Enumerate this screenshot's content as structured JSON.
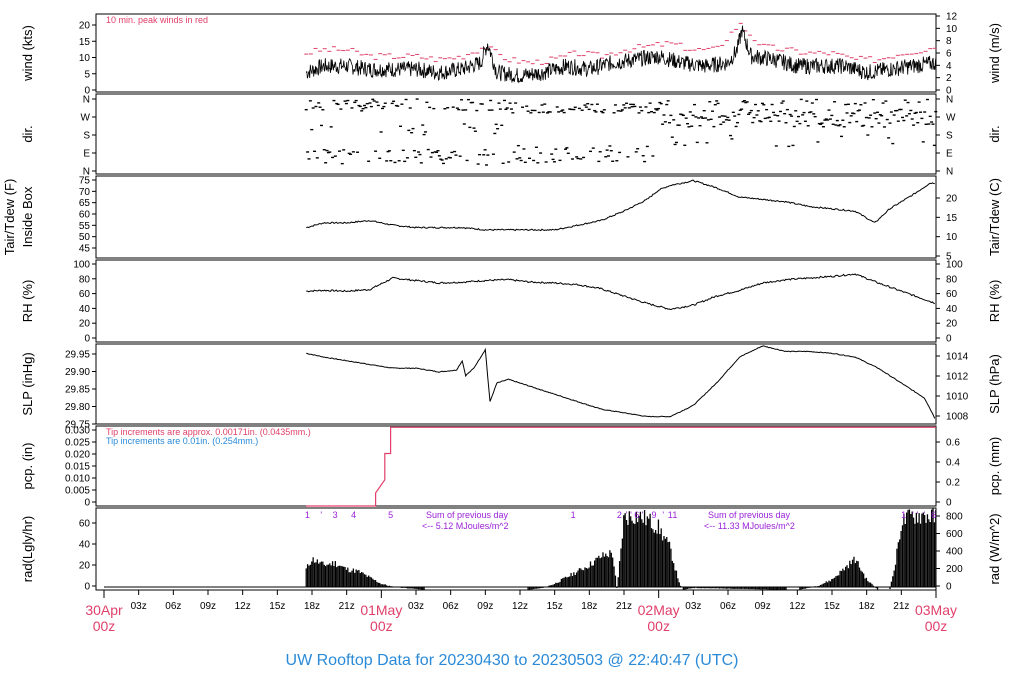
{
  "footer_title": "UW Rooftop Data for 20230430  to  20230503 @ 22:40:47  (UTC)",
  "colors": {
    "red": "#e0406a",
    "blue": "#2a8ad8",
    "purple": "#9a22d8",
    "line": "#000000"
  },
  "time_axis": {
    "start_hour": 0,
    "end_hour": 72,
    "hour_ticks": [
      "03z",
      "06z",
      "09z",
      "12z",
      "15z",
      "18z",
      "21z"
    ],
    "day_labels": [
      {
        "hour": 0,
        "date": "30Apr",
        "time": "00z"
      },
      {
        "hour": 24,
        "date": "01May",
        "time": "00z"
      },
      {
        "hour": 48,
        "date": "02May",
        "time": "00z"
      },
      {
        "hour": 72,
        "date": "03May",
        "time": "00z"
      }
    ]
  },
  "panels": {
    "wind": {
      "left_label": "wind (kts)",
      "right_label": "wind (m/s)",
      "note": "10 min. peak winds in red",
      "left_ticks": [
        "0",
        "5",
        "10",
        "15",
        "20"
      ],
      "right_ticks": [
        "0",
        "2",
        "4",
        "6",
        "8",
        "10",
        "12"
      ],
      "ylim": [
        0,
        24
      ]
    },
    "dir": {
      "left_label": "dir.",
      "right_label": "dir.",
      "left_ticks": [
        "N",
        "E",
        "S",
        "W",
        "N"
      ],
      "right_ticks": [
        "N",
        "E",
        "S",
        "W",
        "N"
      ]
    },
    "temp": {
      "left_label_1": "Tair/Tdew (F)",
      "left_label_2": "Inside Box",
      "right_label": "Tair/Tdew (C)",
      "left_ticks": [
        "45",
        "50",
        "55",
        "60",
        "65",
        "70",
        "75"
      ],
      "right_ticks": [
        "5",
        "10",
        "15",
        "20"
      ],
      "ylim": [
        41,
        76
      ]
    },
    "rh": {
      "left_label": "RH (%)",
      "right_label": "RH (%)",
      "left_ticks": [
        "0",
        "20",
        "40",
        "60",
        "80",
        "100"
      ],
      "right_ticks": [
        "0",
        "20",
        "40",
        "60",
        "80",
        "100"
      ],
      "ylim": [
        0,
        100
      ]
    },
    "slp": {
      "left_label": "SLP (inHg)",
      "right_label": "SLP (hPa)",
      "left_ticks": [
        "29.75",
        "29.80",
        "29.85",
        "29.90",
        "29.95"
      ],
      "right_ticks": [
        "1008",
        "1010",
        "1012",
        "1014"
      ],
      "ylim": [
        29.75,
        29.965
      ]
    },
    "pcp": {
      "left_label": "pcp. (in)",
      "right_label": "pcp. (mm)",
      "note_red": "Tip increments are approx. 0.00171in. (0.0435mm.)",
      "note_blue": "Tip increments are 0.01in. (0.254mm.)",
      "left_ticks": [
        "0",
        "0.005",
        "0.010",
        "0.015",
        "0.020",
        "0.025",
        "0.030"
      ],
      "right_ticks": [
        "0",
        "0.2",
        "0.4",
        "0.6"
      ],
      "ylim": [
        0,
        0.0305
      ]
    },
    "rad": {
      "left_label": "rad(Lgly/hr)",
      "right_label": "rad (W/m^2)",
      "left_ticks": [
        "0",
        "20",
        "40",
        "60"
      ],
      "right_ticks": [
        "0",
        "200",
        "400",
        "600",
        "800"
      ],
      "ylim": [
        0,
        73
      ],
      "sum_1": {
        "line1": "Sum of previous day",
        "line2": "<-- 5.12 MJoules/m^2"
      },
      "sum_2": {
        "line1": "Sum of previous day",
        "line2": "<-- 11.33 MJoules/m^2"
      },
      "markers": [
        {
          "hour": 17.6,
          "text": "1"
        },
        {
          "hour": 18.8,
          "text": "'"
        },
        {
          "hour": 20.0,
          "text": "3"
        },
        {
          "hour": 21.6,
          "text": "4"
        },
        {
          "hour": 24.8,
          "text": "5"
        },
        {
          "hour": 40.6,
          "text": "1"
        },
        {
          "hour": 44.6,
          "text": "2"
        },
        {
          "hour": 45.2,
          "text": "'"
        },
        {
          "hour": 45.6,
          "text": "'"
        },
        {
          "hour": 46.1,
          "text": "6"
        },
        {
          "hour": 46.6,
          "text": "'"
        },
        {
          "hour": 47.6,
          "text": "9"
        },
        {
          "hour": 48.4,
          "text": "'"
        },
        {
          "hour": 49.0,
          "text": "1"
        },
        {
          "hour": 49.4,
          "text": "1"
        },
        {
          "hour": 69.2,
          "text": "1"
        },
        {
          "hour": 70.0,
          "text": "'"
        },
        {
          "hour": 70.4,
          "text": "'"
        },
        {
          "hour": 71.0,
          "text": "'"
        },
        {
          "hour": 71.8,
          "text": "6"
        }
      ]
    }
  },
  "chart_data": {
    "type": "line",
    "title": "UW Rooftop Data for 20230430  to  20230503 @ 22:40:47  (UTC)",
    "x_unit": "hours since 30Apr 00z",
    "series": [
      {
        "name": "wind speed (kts)",
        "x": [
          17.5,
          19,
          21,
          23,
          25,
          27,
          29,
          31,
          32.6,
          33.2,
          34,
          36,
          38,
          40,
          42,
          44,
          46,
          48,
          50,
          52,
          54,
          54.8,
          55.2,
          56,
          58,
          60,
          62,
          64,
          66,
          68,
          70,
          72
        ],
        "y": [
          6,
          8,
          8,
          7,
          7,
          7,
          6,
          7,
          9,
          15,
          6,
          5,
          6,
          8,
          7,
          9,
          10,
          11,
          9,
          8,
          9,
          13,
          19,
          11,
          10,
          8,
          8,
          8,
          6,
          7,
          8,
          9
        ]
      },
      {
        "name": "peak wind (kts)",
        "x": [
          17.5,
          19,
          21,
          23,
          25,
          27,
          29,
          31,
          33,
          35,
          37,
          39,
          41,
          43,
          45,
          47,
          49,
          51,
          53,
          55,
          57,
          59,
          61,
          63,
          65,
          67,
          69,
          71,
          72
        ],
        "y": [
          12,
          13,
          13,
          11,
          11,
          11,
          10,
          11,
          14,
          10,
          9,
          10,
          12,
          11,
          13,
          14,
          15,
          13,
          13,
          21,
          14,
          13,
          12,
          12,
          10,
          10,
          12,
          13,
          14
        ]
      },
      {
        "name": "air temperature (F)",
        "x": [
          17.5,
          19,
          21,
          23,
          25,
          27,
          29,
          31,
          33,
          35,
          37,
          39,
          41,
          43,
          45,
          47,
          48,
          49,
          51,
          53,
          55,
          57,
          59,
          61,
          63,
          65,
          66.7,
          68,
          70,
          71.5,
          72
        ],
        "y": [
          54,
          56,
          56,
          57,
          55,
          54,
          54,
          54,
          53,
          53,
          53,
          53,
          55,
          57,
          61,
          66,
          70,
          72,
          74,
          71,
          67,
          66,
          65,
          63,
          62,
          61,
          56,
          62,
          68,
          73,
          73
        ]
      },
      {
        "name": "RH (%)",
        "x": [
          17.5,
          19,
          21,
          23,
          25,
          27,
          29,
          31,
          33,
          35,
          37,
          39,
          41,
          43,
          45,
          47,
          49,
          51,
          53,
          55,
          57,
          59,
          61,
          63,
          65,
          67,
          69,
          71,
          72
        ],
        "y": [
          62,
          63,
          62,
          64,
          78,
          75,
          72,
          73,
          75,
          76,
          73,
          72,
          70,
          65,
          56,
          47,
          40,
          45,
          56,
          63,
          72,
          76,
          78,
          80,
          83,
          72,
          62,
          52,
          47
        ]
      },
      {
        "name": "SLP (inHg)",
        "x": [
          17.5,
          19,
          21,
          23,
          25,
          27,
          29,
          30.5,
          31,
          31.3,
          32,
          33,
          33.4,
          34,
          35,
          37,
          39,
          41,
          43,
          45,
          47,
          49,
          51,
          53,
          55,
          57,
          59,
          61,
          63,
          65,
          67,
          69,
          71,
          72
        ],
        "y": [
          29.94,
          29.93,
          29.92,
          29.91,
          29.9,
          29.9,
          29.89,
          29.895,
          29.92,
          29.88,
          29.9,
          29.95,
          29.81,
          29.86,
          29.87,
          29.85,
          29.83,
          29.81,
          29.79,
          29.78,
          29.77,
          29.77,
          29.8,
          29.86,
          29.93,
          29.96,
          29.945,
          29.945,
          29.94,
          29.93,
          29.9,
          29.86,
          29.82,
          29.76
        ]
      },
      {
        "name": "precipitation (in)",
        "x": [
          17.5,
          23.5,
          23.5,
          24.3,
          24.3,
          24.8,
          24.8,
          72
        ],
        "y": [
          0,
          0,
          0.005,
          0.01,
          0.02,
          0.02,
          0.03,
          0.03
        ]
      },
      {
        "name": "radiation (Lgly/hr)",
        "x": [
          17.5,
          18,
          19,
          20,
          21,
          22,
          23,
          24,
          25,
          26,
          27,
          28,
          29,
          36.5,
          38,
          39,
          40,
          41,
          42,
          43,
          44,
          44.4,
          45,
          46,
          47,
          48,
          49,
          49.5,
          50,
          51,
          60,
          61,
          62,
          63,
          64,
          65,
          66,
          67,
          68,
          68.5,
          69,
          70,
          71,
          72
        ],
        "y": [
          20,
          30,
          24,
          26,
          20,
          18,
          12,
          6,
          3,
          2,
          1,
          0,
          0,
          0,
          2,
          6,
          12,
          18,
          24,
          32,
          36,
          0,
          70,
          72,
          68,
          60,
          40,
          18,
          0,
          2,
          0,
          2,
          5,
          10,
          20,
          30,
          10,
          0,
          0,
          26,
          65,
          72,
          72,
          70
        ]
      }
    ]
  }
}
